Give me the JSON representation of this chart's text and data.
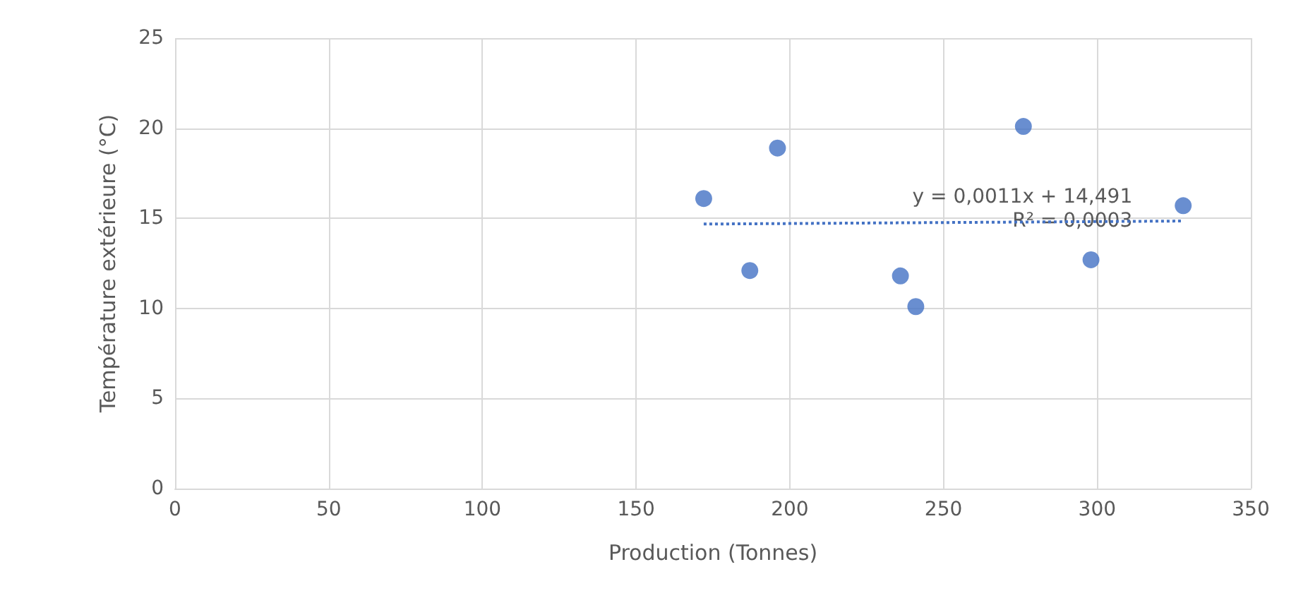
{
  "chart_data": {
    "type": "scatter",
    "xlabel": "Production (Tonnes)",
    "ylabel": "Température extérieure (°C)",
    "xlim": [
      0,
      350
    ],
    "xticks": [
      0,
      50,
      100,
      150,
      200,
      250,
      300,
      350
    ],
    "ylim": [
      0,
      25
    ],
    "yticks": [
      0,
      5,
      10,
      15,
      20,
      25
    ],
    "grid": true,
    "annotations": [
      "y = 0,0011x + 14,491",
      "R² = 0,0003"
    ],
    "series": [
      {
        "color": "#4472c4",
        "marker": "circle",
        "x": [
          172,
          187,
          196,
          236,
          241,
          276,
          298,
          328
        ],
        "values": [
          16.1,
          12.1,
          18.9,
          11.8,
          10.1,
          20.1,
          12.7,
          15.7
        ]
      },
      {
        "type": "line",
        "color": "#4472c4",
        "marker": "none",
        "line_style": "dotted",
        "x": [
          172,
          328
        ],
        "values": [
          14.68,
          14.85
        ]
      }
    ]
  }
}
